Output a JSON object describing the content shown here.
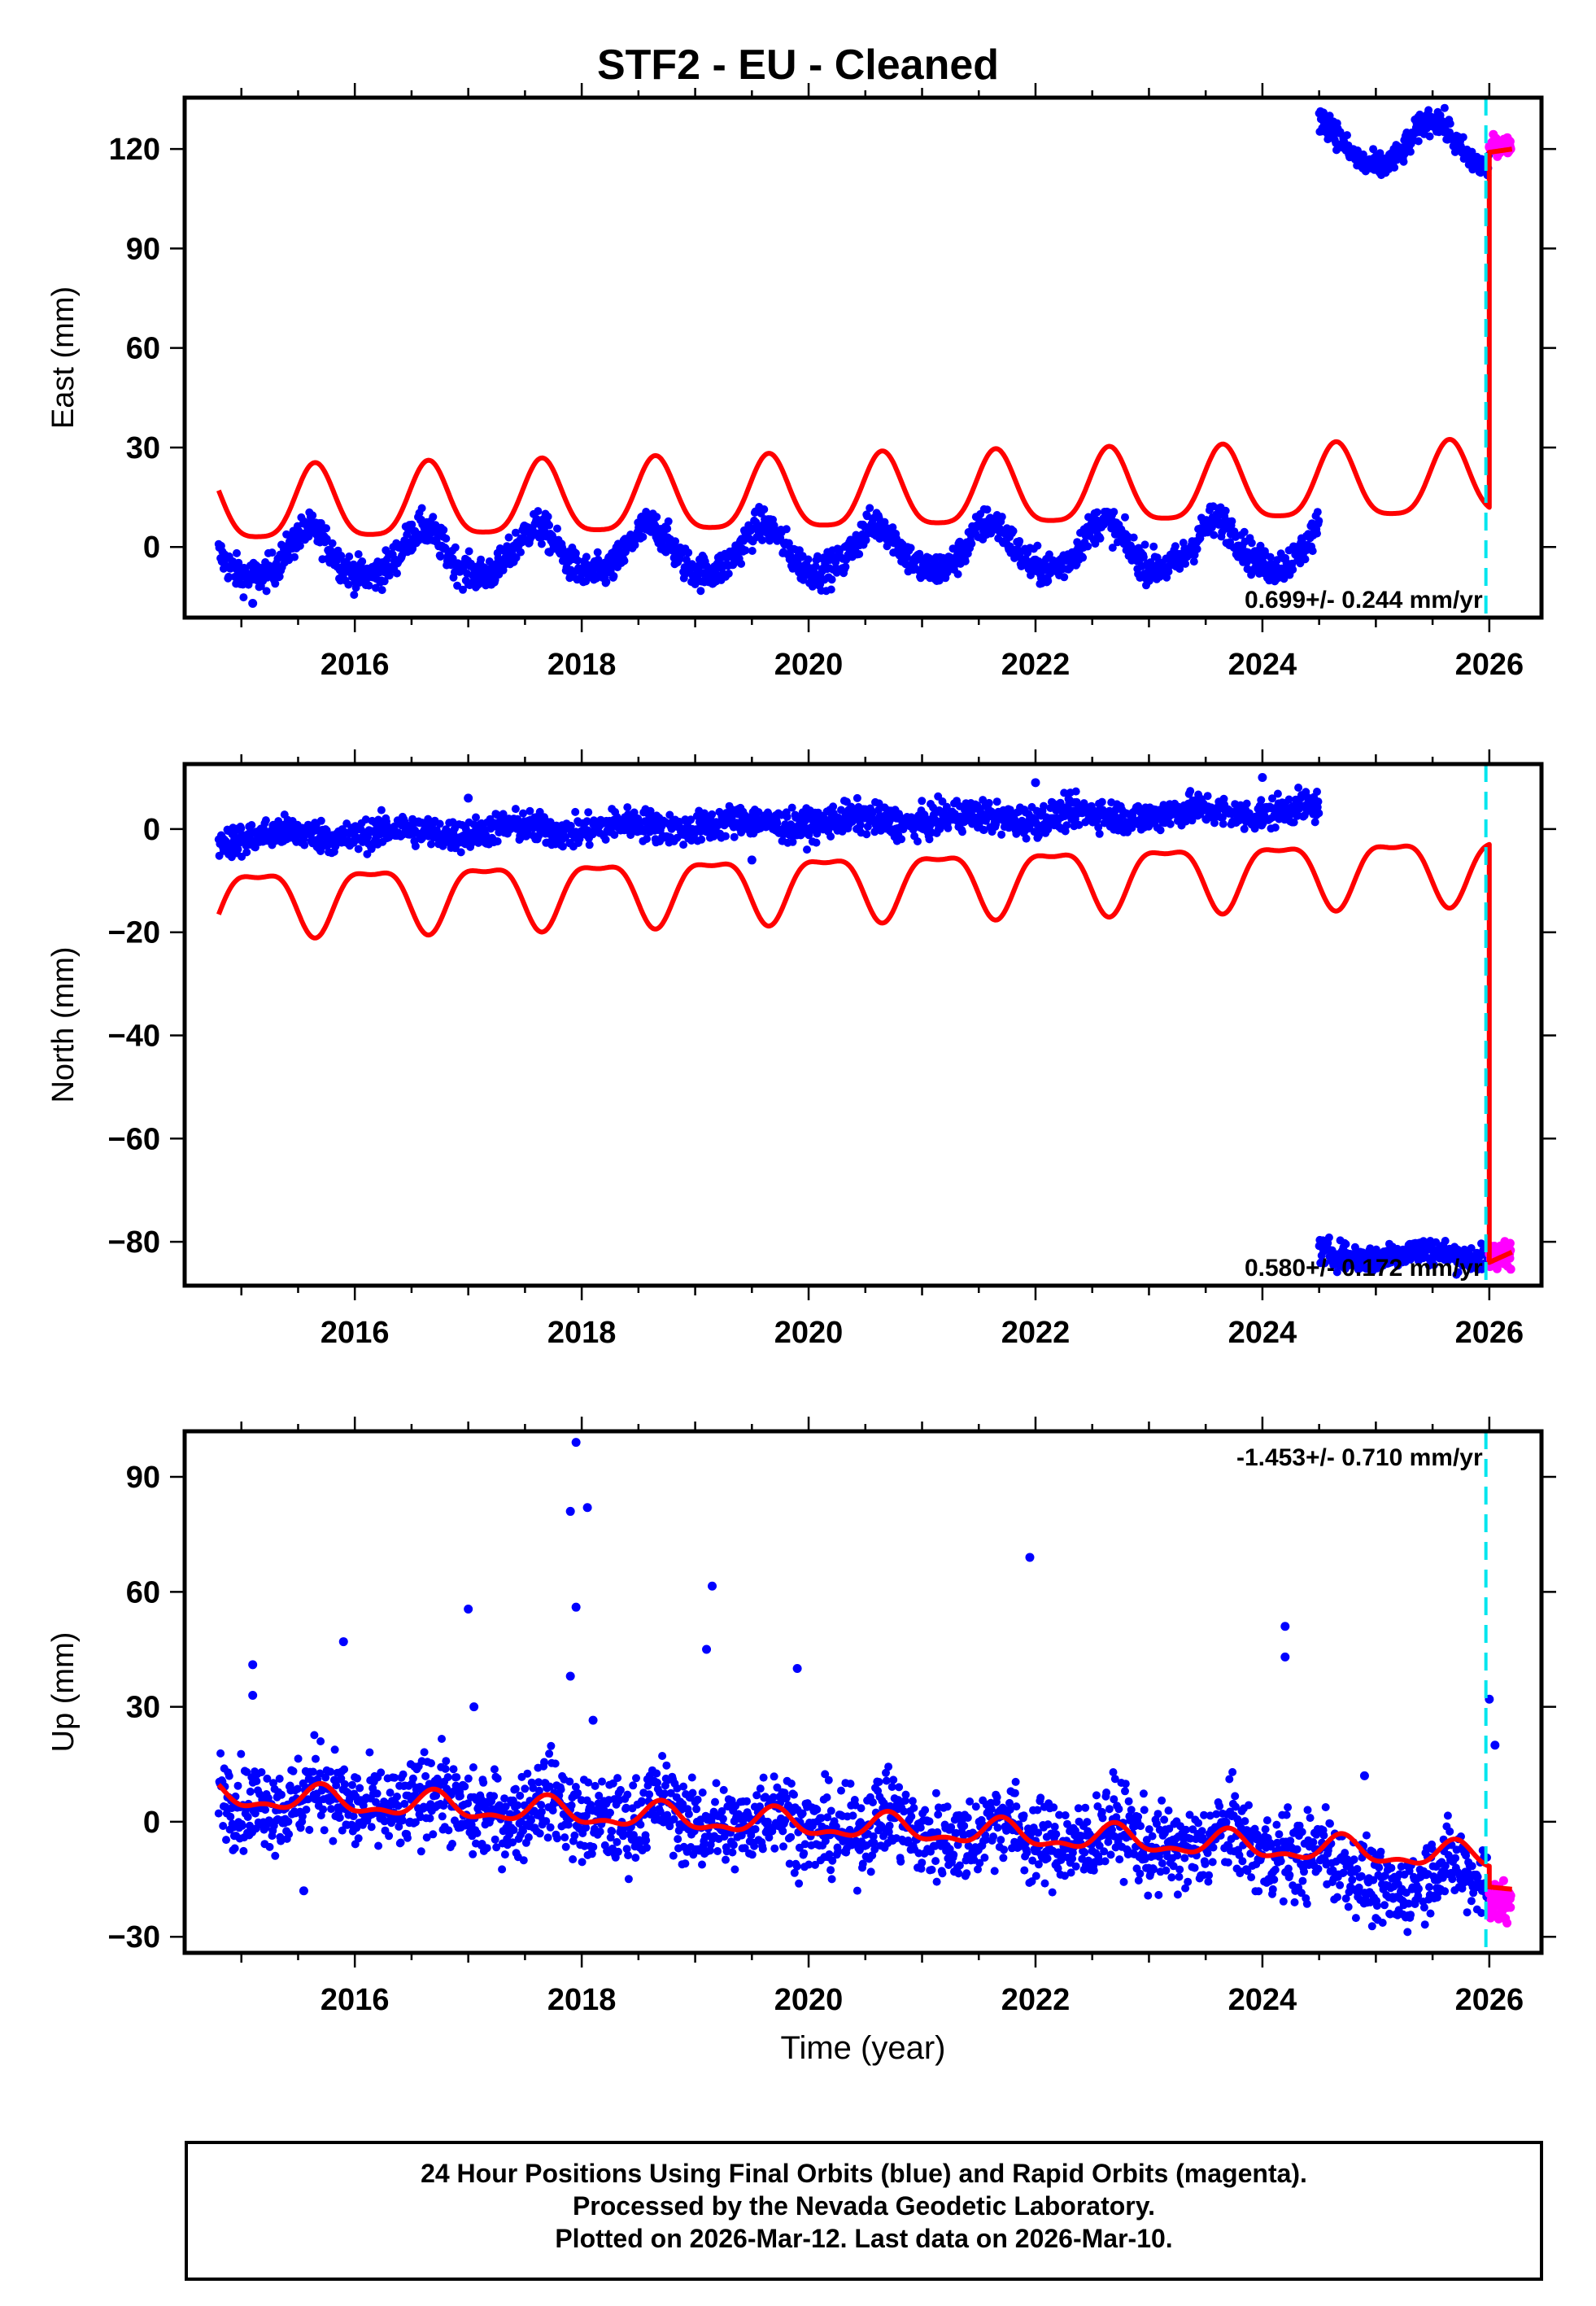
{
  "title": "STF2  - EU - Cleaned",
  "footer": {
    "line1": "24 Hour Positions Using Final Orbits (blue) and Rapid Orbits (magenta).",
    "line2": "Processed by the Nevada Geodetic Laboratory.",
    "line3": "Plotted on 2026-Mar-12. Last data on 2026-Mar-10."
  },
  "chart_data": [
    {
      "type": "scatter",
      "component": "East",
      "ylabel": "East (mm)",
      "xlabel": "",
      "xlim": [
        2014.5,
        2026.46
      ],
      "xticks": [
        2016,
        2018,
        2020,
        2022,
        2024,
        2026
      ],
      "ylim": [
        -21.3,
        135.5
      ],
      "yticks": [
        0,
        30,
        60,
        90,
        120
      ],
      "rate_label": "0.699+/- 0.244 mm/yr",
      "rate_label_position": "bottom-right",
      "marker_year": 2025.97,
      "obs_segments": [
        {
          "start": 2014.8,
          "end": 2024.5,
          "offset": -3,
          "t0": 2015,
          "rate": 0.35,
          "annual": 7,
          "semiannual": 1,
          "peak": 0.6,
          "noise": 2.5
        },
        {
          "start": 2024.5,
          "end": 2026.0,
          "offset": 121,
          "t0": 2025,
          "rate": 0,
          "annual": 7,
          "semiannual": 1,
          "peak": 0.5,
          "noise": 2
        }
      ],
      "rapid_segment": {
        "start": 2026.0,
        "end": 2026.19,
        "offset": 121,
        "noise": 1.2
      },
      "fit_segments": [
        {
          "start": 2014.8,
          "end": 2026.0,
          "offset": 11.5,
          "t0": 2015,
          "rate": 0.699,
          "annual": 11,
          "semiannual": 2.5,
          "peak": 0.65
        },
        {
          "start": 2026.0,
          "end": 2026.2,
          "offset": 119,
          "t0": 2026,
          "rate": 5,
          "annual": 0,
          "semiannual": 0,
          "peak": 0
        }
      ],
      "outliers": [
        [
          2015.1,
          -17
        ],
        [
          2023.0,
          -10
        ]
      ]
    },
    {
      "type": "scatter",
      "component": "North",
      "ylabel": "North (mm)",
      "xlabel": "",
      "xlim": [
        2014.5,
        2026.46
      ],
      "xticks": [
        2016,
        2018,
        2020,
        2022,
        2024,
        2026
      ],
      "ylim": [
        -88.5,
        12.6
      ],
      "yticks": [
        -80,
        -60,
        -40,
        -20,
        0
      ],
      "rate_label": "0.580+/- 0.172 mm/yr",
      "rate_label_position": "bottom-right",
      "marker_year": 2025.97,
      "obs_segments": [
        {
          "start": 2014.8,
          "end": 2024.5,
          "offset": -1.5,
          "t0": 2015,
          "rate": 0.55,
          "annual": 0.8,
          "semiannual": 0,
          "peak": 0.4,
          "noise": 1.5
        },
        {
          "start": 2024.5,
          "end": 2026.0,
          "offset": -82.5,
          "t0": 2025,
          "rate": 0,
          "annual": 0.8,
          "semiannual": 0,
          "peak": 0.4,
          "noise": 1.3
        }
      ],
      "rapid_segment": {
        "start": 2026.0,
        "end": 2026.19,
        "offset": -82.5,
        "noise": 1.2
      },
      "fit_segments": [
        {
          "start": 2014.8,
          "end": 2026.0,
          "offset": -13.5,
          "t0": 2015,
          "rate": 0.58,
          "annual": -6,
          "semiannual": -2,
          "peak": 0.65
        },
        {
          "start": 2026.0,
          "end": 2026.2,
          "offset": -84,
          "t0": 2026,
          "rate": 10,
          "annual": 0,
          "semiannual": 0,
          "peak": 0
        }
      ],
      "outliers": [
        [
          2017.0,
          6
        ],
        [
          2022.0,
          9
        ],
        [
          2024.0,
          10
        ],
        [
          2019.5,
          -6
        ]
      ]
    },
    {
      "type": "scatter",
      "component": "Up",
      "ylabel": "Up (mm)",
      "xlabel": "Time (year)",
      "xlim": [
        2014.5,
        2026.46
      ],
      "xticks": [
        2016,
        2018,
        2020,
        2022,
        2024,
        2026
      ],
      "ylim": [
        -34.2,
        101.9
      ],
      "yticks": [
        -30,
        0,
        30,
        60,
        90
      ],
      "rate_label": "-1.453+/- 0.710 mm/yr",
      "rate_label_position": "top-right",
      "marker_year": 2025.97,
      "obs_segments": [
        {
          "start": 2014.8,
          "end": 2024.6,
          "offset": 6.5,
          "t0": 2015,
          "rate": -1.45,
          "annual": 3,
          "semiannual": 1.5,
          "peak": 0.7,
          "noise": 5.5
        },
        {
          "start": 2024.6,
          "end": 2026.0,
          "offset": -15,
          "t0": 2025,
          "rate": 0,
          "annual": 4,
          "semiannual": 0,
          "peak": 0.65,
          "noise": 5
        }
      ],
      "rapid_segment": {
        "start": 2026.0,
        "end": 2026.19,
        "offset": -21,
        "noise": 2.5
      },
      "fit_segments": [
        {
          "start": 2014.8,
          "end": 2026.0,
          "offset": 6.5,
          "t0": 2015,
          "rate": -1.45,
          "annual": 3,
          "semiannual": 1.5,
          "peak": 0.7
        },
        {
          "start": 2026.0,
          "end": 2026.2,
          "offset": -17,
          "t0": 2026,
          "rate": -3,
          "annual": 0,
          "semiannual": 0,
          "peak": 0
        }
      ],
      "outliers": [
        [
          2017.95,
          99
        ],
        [
          2017.9,
          81
        ],
        [
          2018.05,
          82
        ],
        [
          2017.95,
          56
        ],
        [
          2017.0,
          55.5
        ],
        [
          2015.9,
          47
        ],
        [
          2019.15,
          61.5
        ],
        [
          2019.1,
          45
        ],
        [
          2019.9,
          40
        ],
        [
          2021.95,
          69
        ],
        [
          2024.2,
          51
        ],
        [
          2024.2,
          43
        ],
        [
          2017.9,
          38
        ],
        [
          2015.1,
          41
        ],
        [
          2015.1,
          33
        ],
        [
          2017.05,
          30
        ],
        [
          2026.0,
          32
        ],
        [
          2026.05,
          20
        ],
        [
          2015.55,
          -18
        ],
        [
          2024.9,
          12
        ],
        [
          2018.1,
          26.5
        ]
      ]
    }
  ]
}
